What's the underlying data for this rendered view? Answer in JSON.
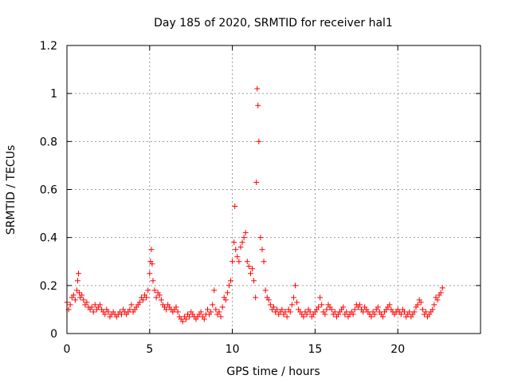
{
  "chart_data": {
    "type": "scatter",
    "title": "Day 185 of 2020, SRMTID for receiver hal1",
    "xlabel": "GPS time / hours",
    "ylabel": "SRMTID / TECUs",
    "xlim": [
      0,
      25
    ],
    "ylim": [
      0,
      1.2
    ],
    "xticks": [
      0,
      5,
      10,
      15,
      20
    ],
    "yticks": [
      0,
      0.2,
      0.4,
      0.6,
      0.8,
      1,
      1.2
    ],
    "xtick_labels": [
      "0",
      "5",
      "10",
      "15",
      "20"
    ],
    "ytick_labels": [
      "0",
      "0.2",
      "0.4",
      "0.6",
      "0.8",
      "1",
      "1.2"
    ],
    "grid": true,
    "marker": "+",
    "color": "#ff0000",
    "series": [
      {
        "name": "SRMTID",
        "x": [
          0.0,
          0.1,
          0.2,
          0.3,
          0.4,
          0.5,
          0.6,
          0.65,
          0.7,
          0.75,
          0.8,
          0.9,
          1.0,
          1.1,
          1.2,
          1.3,
          1.4,
          1.5,
          1.6,
          1.7,
          1.8,
          1.9,
          2.0,
          2.1,
          2.2,
          2.3,
          2.4,
          2.5,
          2.6,
          2.7,
          2.8,
          2.9,
          3.0,
          3.1,
          3.2,
          3.3,
          3.4,
          3.5,
          3.6,
          3.7,
          3.8,
          3.9,
          4.0,
          4.1,
          4.2,
          4.3,
          4.4,
          4.5,
          4.6,
          4.7,
          4.8,
          4.9,
          5.0,
          5.05,
          5.1,
          5.15,
          5.2,
          5.3,
          5.4,
          5.5,
          5.6,
          5.7,
          5.8,
          5.9,
          6.0,
          6.1,
          6.2,
          6.3,
          6.4,
          6.5,
          6.6,
          6.7,
          6.8,
          6.9,
          7.0,
          7.1,
          7.2,
          7.3,
          7.4,
          7.5,
          7.6,
          7.7,
          7.8,
          7.9,
          8.0,
          8.1,
          8.2,
          8.3,
          8.4,
          8.5,
          8.6,
          8.7,
          8.8,
          8.9,
          9.0,
          9.1,
          9.2,
          9.3,
          9.4,
          9.5,
          9.6,
          9.7,
          9.8,
          9.9,
          10.0,
          10.1,
          10.15,
          10.2,
          10.3,
          10.4,
          10.5,
          10.6,
          10.7,
          10.8,
          10.9,
          11.0,
          11.1,
          11.2,
          11.3,
          11.4,
          11.45,
          11.5,
          11.55,
          11.6,
          11.7,
          11.8,
          11.9,
          12.0,
          12.1,
          12.2,
          12.3,
          12.4,
          12.5,
          12.6,
          12.7,
          12.8,
          12.9,
          13.0,
          13.1,
          13.2,
          13.3,
          13.4,
          13.5,
          13.6,
          13.7,
          13.8,
          13.9,
          14.0,
          14.1,
          14.2,
          14.3,
          14.4,
          14.5,
          14.6,
          14.7,
          14.8,
          14.9,
          15.0,
          15.1,
          15.2,
          15.3,
          15.4,
          15.5,
          15.6,
          15.7,
          15.8,
          15.9,
          16.0,
          16.1,
          16.2,
          16.3,
          16.4,
          16.5,
          16.6,
          16.7,
          16.8,
          16.9,
          17.0,
          17.1,
          17.2,
          17.3,
          17.4,
          17.5,
          17.6,
          17.7,
          17.8,
          17.9,
          18.0,
          18.1,
          18.2,
          18.3,
          18.4,
          18.5,
          18.6,
          18.7,
          18.8,
          18.9,
          19.0,
          19.1,
          19.2,
          19.3,
          19.4,
          19.5,
          19.6,
          19.7,
          19.8,
          19.9,
          20.0,
          20.1,
          20.2,
          20.3,
          20.4,
          20.5,
          20.6,
          20.7,
          20.8,
          20.9,
          21.0,
          21.1,
          21.2,
          21.3,
          21.4,
          21.5,
          21.6,
          21.7,
          21.8,
          21.9,
          22.0,
          22.1,
          22.2,
          22.3,
          22.4,
          22.5,
          22.6,
          22.7
        ],
        "y": [
          0.13,
          0.1,
          0.12,
          0.15,
          0.16,
          0.14,
          0.18,
          0.22,
          0.25,
          0.17,
          0.15,
          0.16,
          0.14,
          0.12,
          0.13,
          0.11,
          0.1,
          0.11,
          0.09,
          0.12,
          0.1,
          0.11,
          0.12,
          0.1,
          0.09,
          0.08,
          0.1,
          0.09,
          0.07,
          0.08,
          0.09,
          0.08,
          0.07,
          0.08,
          0.09,
          0.08,
          0.1,
          0.09,
          0.08,
          0.09,
          0.1,
          0.12,
          0.09,
          0.1,
          0.11,
          0.12,
          0.13,
          0.15,
          0.14,
          0.16,
          0.15,
          0.18,
          0.25,
          0.3,
          0.35,
          0.29,
          0.22,
          0.18,
          0.15,
          0.17,
          0.16,
          0.14,
          0.12,
          0.11,
          0.1,
          0.12,
          0.11,
          0.1,
          0.09,
          0.1,
          0.11,
          0.09,
          0.07,
          0.06,
          0.05,
          0.07,
          0.06,
          0.08,
          0.07,
          0.09,
          0.08,
          0.07,
          0.06,
          0.07,
          0.08,
          0.09,
          0.07,
          0.06,
          0.08,
          0.1,
          0.08,
          0.09,
          0.12,
          0.18,
          0.1,
          0.08,
          0.09,
          0.07,
          0.11,
          0.15,
          0.14,
          0.17,
          0.2,
          0.22,
          0.3,
          0.38,
          0.53,
          0.35,
          0.32,
          0.3,
          0.36,
          0.38,
          0.4,
          0.42,
          0.3,
          0.28,
          0.25,
          0.27,
          0.22,
          0.15,
          0.63,
          1.02,
          0.95,
          0.8,
          0.4,
          0.35,
          0.3,
          0.18,
          0.15,
          0.14,
          0.12,
          0.1,
          0.11,
          0.09,
          0.1,
          0.08,
          0.09,
          0.1,
          0.08,
          0.09,
          0.07,
          0.1,
          0.09,
          0.12,
          0.15,
          0.2,
          0.13,
          0.1,
          0.09,
          0.08,
          0.07,
          0.09,
          0.08,
          0.1,
          0.09,
          0.07,
          0.08,
          0.09,
          0.1,
          0.11,
          0.15,
          0.12,
          0.09,
          0.08,
          0.1,
          0.12,
          0.11,
          0.1,
          0.08,
          0.09,
          0.07,
          0.08,
          0.09,
          0.1,
          0.11,
          0.08,
          0.09,
          0.07,
          0.08,
          0.09,
          0.08,
          0.1,
          0.12,
          0.11,
          0.12,
          0.1,
          0.09,
          0.11,
          0.1,
          0.09,
          0.08,
          0.07,
          0.09,
          0.08,
          0.1,
          0.11,
          0.09,
          0.08,
          0.07,
          0.09,
          0.1,
          0.11,
          0.12,
          0.1,
          0.09,
          0.08,
          0.09,
          0.1,
          0.09,
          0.08,
          0.1,
          0.09,
          0.07,
          0.08,
          0.09,
          0.07,
          0.08,
          0.09,
          0.11,
          0.12,
          0.14,
          0.13,
          0.1,
          0.08,
          0.09,
          0.07,
          0.08,
          0.09,
          0.1,
          0.12,
          0.15,
          0.14,
          0.16,
          0.17,
          0.19
        ]
      }
    ]
  }
}
